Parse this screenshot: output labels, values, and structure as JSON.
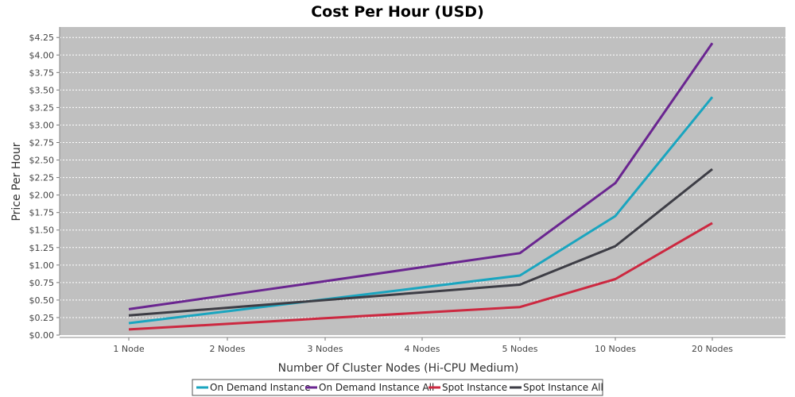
{
  "chart_data": {
    "type": "line",
    "title": "Cost Per Hour (USD)",
    "xlabel": "Number Of Cluster Nodes (Hi-CPU Medium)",
    "ylabel": "Price Per Hour",
    "categories": [
      "1 Node",
      "2 Nodes",
      "3 Nodes",
      "4 Nodes",
      "5 Nodes",
      "10 Nodes",
      "20 Nodes"
    ],
    "ylim": [
      0,
      4.4
    ],
    "yticks": [
      0,
      0.25,
      0.5,
      0.75,
      1.0,
      1.25,
      1.5,
      1.75,
      2.0,
      2.25,
      2.5,
      2.75,
      3.0,
      3.25,
      3.5,
      3.75,
      4.0,
      4.25
    ],
    "ytick_labels": [
      "$0.00",
      "$0.25",
      "$0.50",
      "$0.75",
      "$1.00",
      "$1.25",
      "$1.50",
      "$1.75",
      "$2.00",
      "$2.25",
      "$2.50",
      "$2.75",
      "$3.00",
      "$3.25",
      "$3.50",
      "$3.75",
      "$4.00",
      "$4.25"
    ],
    "grid": true,
    "legend_position": "bottom",
    "background_color": "#c0c0c0",
    "series": [
      {
        "name": "On Demand Instance",
        "color": "#1aa5bf",
        "values": [
          0.17,
          0.34,
          0.51,
          0.68,
          0.85,
          1.7,
          3.4
        ]
      },
      {
        "name": "On Demand Instance All",
        "color": "#6a2590",
        "values": [
          0.37,
          0.57,
          0.77,
          0.97,
          1.17,
          2.17,
          4.17
        ]
      },
      {
        "name": "Spot Instance",
        "color": "#cc2840",
        "values": [
          0.08,
          0.16,
          0.24,
          0.32,
          0.4,
          0.8,
          1.6
        ]
      },
      {
        "name": "Spot Instance All",
        "color": "#3d3d45",
        "values": [
          0.28,
          0.39,
          0.5,
          0.61,
          0.72,
          1.27,
          2.37
        ]
      }
    ]
  }
}
